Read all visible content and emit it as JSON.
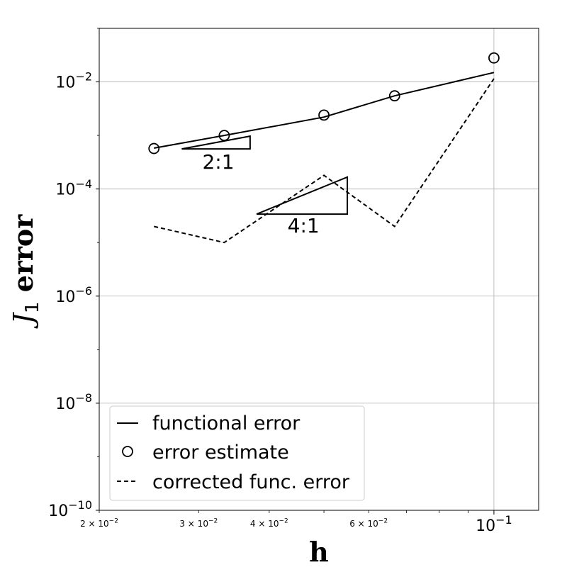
{
  "chart_data": {
    "type": "line",
    "xscale": "log",
    "yscale": "log",
    "xlim": [
      0.02,
      0.12
    ],
    "ylim": [
      1e-10,
      0.1
    ],
    "xlabel": "h",
    "ylabel": {
      "base": "J",
      "subscript": "1",
      "suffix": " error"
    },
    "grid": true,
    "legend_position": "lower-left",
    "x_major_ticks": [
      {
        "value": 0.1,
        "label_mantissa": "10",
        "label_exponent": "−1"
      }
    ],
    "x_minor_ticks": [
      {
        "value": 0.02,
        "label_mantissa": "2 × 10",
        "label_exponent": "−2"
      },
      {
        "value": 0.03,
        "label_mantissa": "3 × 10",
        "label_exponent": "−2"
      },
      {
        "value": 0.04,
        "label_mantissa": "4 × 10",
        "label_exponent": "−2"
      },
      {
        "value": 0.05,
        "label_mantissa": "",
        "label_exponent": ""
      },
      {
        "value": 0.06,
        "label_mantissa": "6 × 10",
        "label_exponent": "−2"
      },
      {
        "value": 0.07,
        "label_mantissa": "",
        "label_exponent": ""
      },
      {
        "value": 0.08,
        "label_mantissa": "",
        "label_exponent": ""
      },
      {
        "value": 0.09,
        "label_mantissa": "",
        "label_exponent": ""
      }
    ],
    "y_ticks": [
      {
        "value": 1e-10,
        "label_mantissa": "10",
        "label_exponent": "−10"
      },
      {
        "value": 1e-08,
        "label_mantissa": "10",
        "label_exponent": "−8"
      },
      {
        "value": 1e-06,
        "label_mantissa": "10",
        "label_exponent": "−6"
      },
      {
        "value": 0.0001,
        "label_mantissa": "10",
        "label_exponent": "−4"
      },
      {
        "value": 0.01,
        "label_mantissa": "10",
        "label_exponent": "−2"
      }
    ],
    "series": [
      {
        "name": "functional error",
        "style": "solid",
        "color": "#000000",
        "x": [
          0.025,
          0.0333,
          0.05,
          0.0667,
          0.1
        ],
        "y": [
          0.00058,
          0.001,
          0.0022,
          0.0055,
          0.015
        ]
      },
      {
        "name": "error estimate",
        "style": "markers",
        "marker": "circle",
        "color": "#000000",
        "x": [
          0.025,
          0.0333,
          0.05,
          0.0667,
          0.1
        ],
        "y": [
          0.00057,
          0.001,
          0.0024,
          0.0055,
          0.028
        ]
      },
      {
        "name": "corrected func. error",
        "style": "dashed",
        "color": "#000000",
        "x": [
          0.025,
          0.0333,
          0.05,
          0.0667,
          0.1
        ],
        "y": [
          2e-05,
          1e-05,
          0.00018,
          2e-05,
          0.0115
        ]
      }
    ],
    "slope_triangles": [
      {
        "label": "2:1",
        "x0": 0.028,
        "x1": 0.037,
        "y0": 0.00056,
        "y1": 0.00097,
        "label_x": 0.0325,
        "label_y": 0.00024
      },
      {
        "label": "4:1",
        "x0": 0.038,
        "x1": 0.055,
        "y0": 3.4e-05,
        "y1": 0.000167,
        "label_x": 0.046,
        "label_y": 1.55e-05
      }
    ]
  }
}
